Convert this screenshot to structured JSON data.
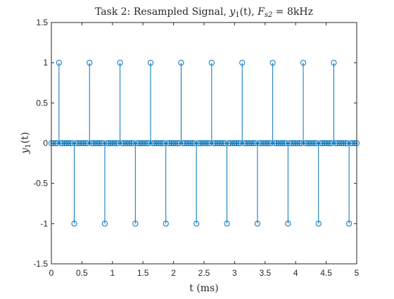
{
  "chart_data": {
    "type": "stem",
    "title": "Task 2: Resampled Signal, y1(t), Fs2 = 8kHz",
    "title_parts": {
      "prefix": "Task 2:  Resampled Signal, ",
      "y": "y",
      "y_sub": "1",
      "t": "(t), ",
      "F": "F",
      "F_sub": "s2",
      "rhs": " = 8kHz"
    },
    "xlabel": "t (ms)",
    "ylabel_parts": {
      "y": "y",
      "sub": "1",
      "t": "(t)"
    },
    "xlim": [
      0,
      5
    ],
    "ylim": [
      -1.5,
      1.5
    ],
    "xticks": [
      0,
      0.5,
      1,
      1.5,
      2,
      2.5,
      3,
      3.5,
      4,
      4.5,
      5
    ],
    "xtick_labels": [
      "0",
      "0.5",
      "1",
      "1.5",
      "2",
      "2.5",
      "3",
      "3.5",
      "4",
      "4.5",
      "5"
    ],
    "yticks": [
      -1.5,
      -1,
      -0.5,
      0,
      0.5,
      1,
      1.5
    ],
    "ytick_labels": [
      "-1.5",
      "-1",
      "-0.5",
      "0",
      "0.5",
      "1",
      "1.5"
    ],
    "grid": false,
    "color": "#0072BD",
    "sample_period_ms": 0.03125,
    "series": [
      {
        "x_start": 0,
        "x_end": 5,
        "nonzero": [
          {
            "x": 0.125,
            "y": 1
          },
          {
            "x": 0.375,
            "y": -1
          },
          {
            "x": 0.625,
            "y": 1
          },
          {
            "x": 0.875,
            "y": -1
          },
          {
            "x": 1.125,
            "y": 1
          },
          {
            "x": 1.375,
            "y": -1
          },
          {
            "x": 1.625,
            "y": 1
          },
          {
            "x": 1.875,
            "y": -1
          },
          {
            "x": 2.125,
            "y": 1
          },
          {
            "x": 2.375,
            "y": -1
          },
          {
            "x": 2.625,
            "y": 1
          },
          {
            "x": 2.875,
            "y": -1
          },
          {
            "x": 3.125,
            "y": 1
          },
          {
            "x": 3.375,
            "y": -1
          },
          {
            "x": 3.625,
            "y": 1
          },
          {
            "x": 3.875,
            "y": -1
          },
          {
            "x": 4.125,
            "y": 1
          },
          {
            "x": 4.375,
            "y": -1
          },
          {
            "x": 4.625,
            "y": 1
          },
          {
            "x": 4.875,
            "y": -1
          }
        ]
      }
    ]
  }
}
